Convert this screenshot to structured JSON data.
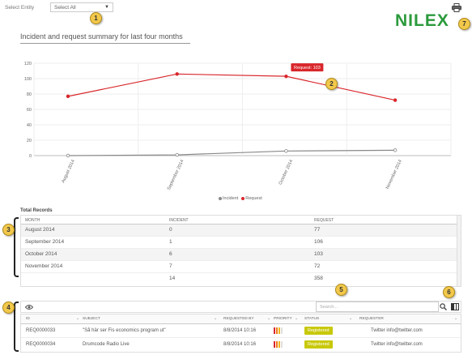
{
  "filter": {
    "label": "Select Entity",
    "value": "Select All"
  },
  "brand": {
    "logo_text": "NILEX",
    "color": "#2b9a3c"
  },
  "chart_title": "Incident and request summary for last four months",
  "callouts": [
    "1",
    "2",
    "3",
    "4",
    "5",
    "6",
    "7"
  ],
  "chart_data": {
    "type": "line",
    "categories": [
      "August 2014",
      "September 2014",
      "October 2014",
      "November 2014"
    ],
    "series": [
      {
        "name": "Incident",
        "values": [
          0,
          1,
          6,
          7
        ],
        "color": "#888888"
      },
      {
        "name": "Request",
        "values": [
          77,
          106,
          103,
          72
        ],
        "color": "#d9262b"
      }
    ],
    "ylim": [
      0,
      120
    ],
    "yticks": [
      0,
      20,
      40,
      60,
      80,
      100,
      120
    ],
    "grid": true,
    "legend": "bottom",
    "tooltip": {
      "text": "Request: 103",
      "series": "Request",
      "index": 2
    }
  },
  "records": {
    "title": "Total Records",
    "headers": [
      "MONTH",
      "INCIDENT",
      "REQUEST"
    ],
    "rows": [
      [
        "August 2014",
        "0",
        "77"
      ],
      [
        "September 2014",
        "1",
        "106"
      ],
      [
        "October 2014",
        "6",
        "103"
      ],
      [
        "November 2014",
        "7",
        "72"
      ]
    ],
    "totals": [
      "",
      "14",
      "358"
    ]
  },
  "toolbar": {
    "search_placeholder": "Search..."
  },
  "tickets": {
    "headers": [
      "ID",
      "SUBJECT",
      "REQUESTED BY",
      "PRIORITY",
      "STATUS",
      "REQUESTER"
    ],
    "rows": [
      {
        "id": "REQ0000033",
        "subject": "\"Så här ser Fis economics program ut\"",
        "requested": "8/8/2014 10:16",
        "status": "Registered",
        "requester": "Twitter info@twitter.com"
      },
      {
        "id": "REQ0000034",
        "subject": "Drumcode Radio Live",
        "requested": "8/8/2014 10:16",
        "status": "Registered",
        "requester": "Twitter info@twitter.com"
      }
    ],
    "priority_colors": [
      "#d9262b",
      "#f07a1a",
      "#f2b51c",
      "#e0e0e0"
    ],
    "status_color": "#c8c80a"
  }
}
